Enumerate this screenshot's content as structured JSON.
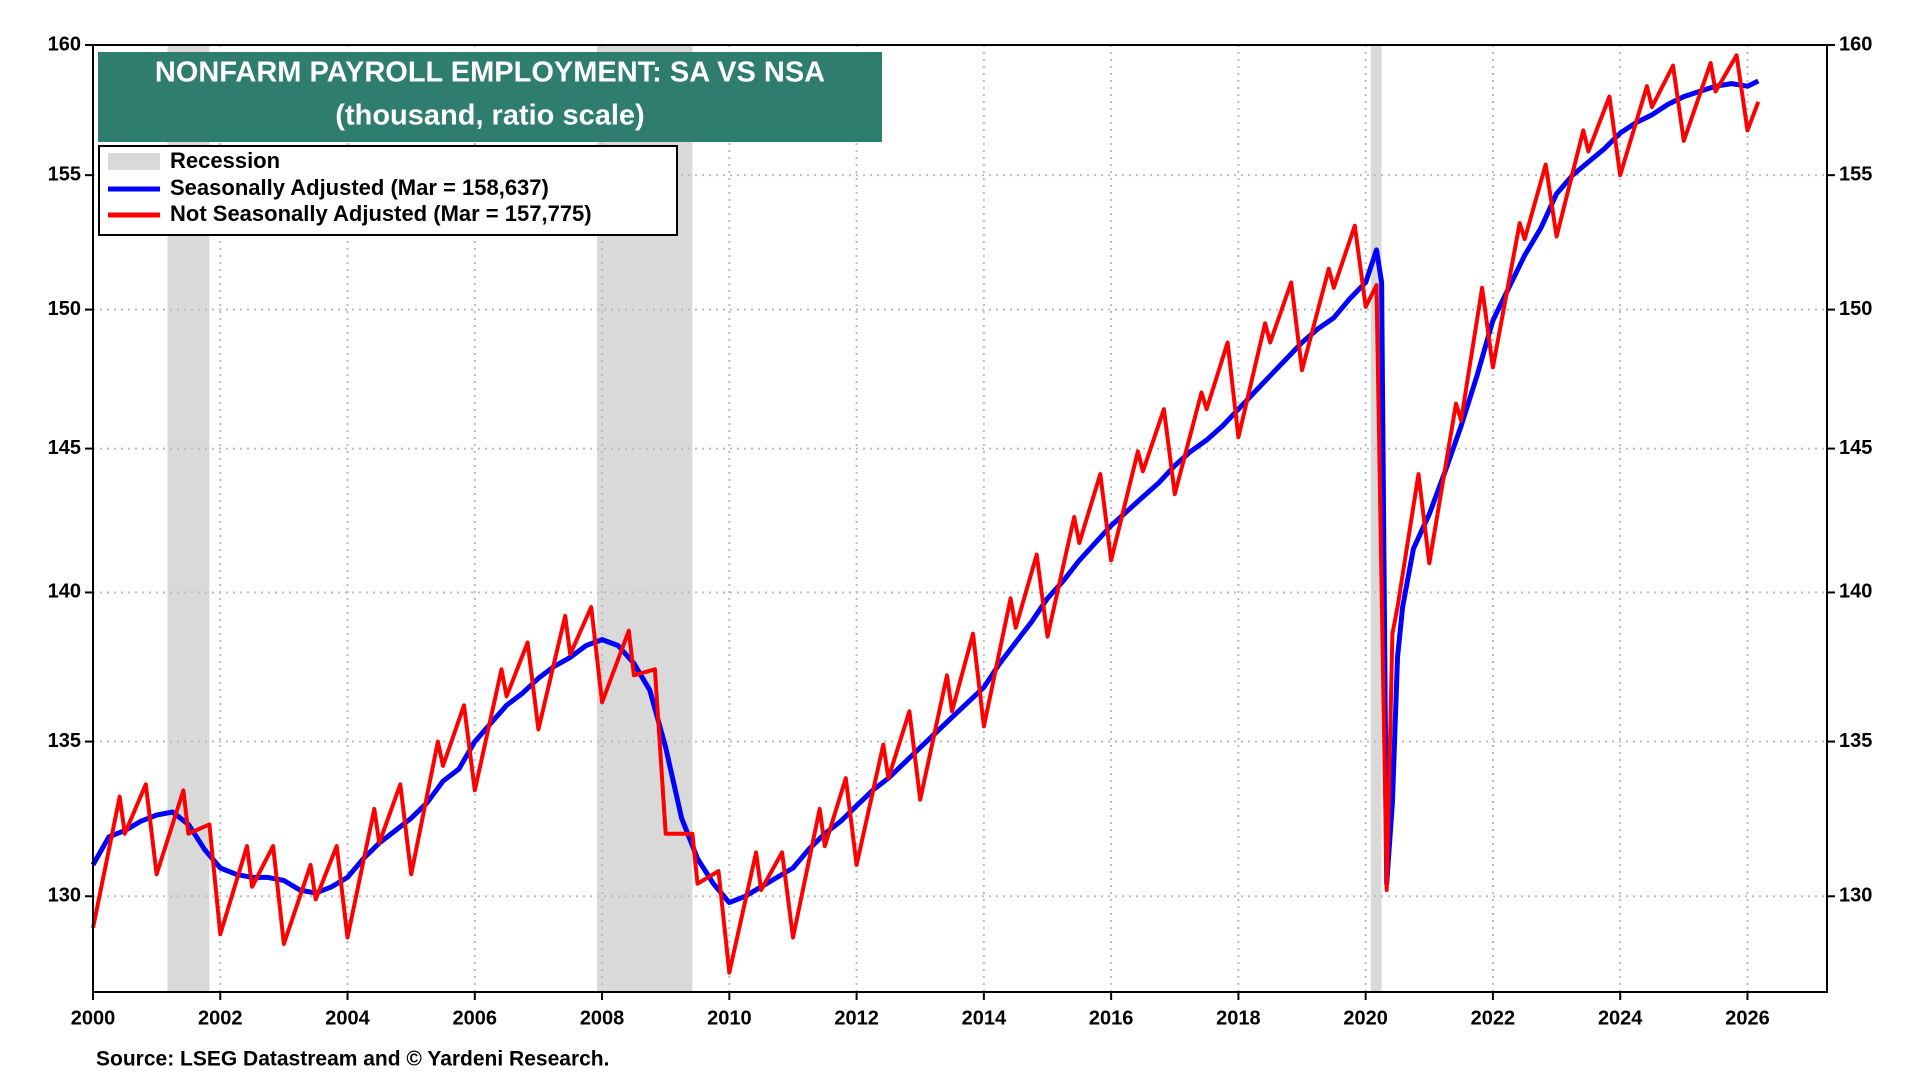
{
  "chart_data": {
    "type": "line",
    "title": "NONFARM PAYROLL EMPLOYMENT: SA VS NSA",
    "subtitle": "(thousand, ratio scale)",
    "source": "Source: LSEG Datastream and © Yardeni Research.",
    "recession_label": "Recession",
    "recessions": [
      [
        2001.17,
        2001.83
      ],
      [
        2007.92,
        2009.42
      ],
      [
        2020.08,
        2020.25
      ]
    ],
    "log_scale": true,
    "grid": true,
    "xlim": [
      2000,
      2027.25
    ],
    "ylim": [
      127,
      160
    ],
    "xticks": [
      2000,
      2002,
      2004,
      2006,
      2008,
      2010,
      2012,
      2014,
      2016,
      2018,
      2020,
      2022,
      2024,
      2026
    ],
    "yticks": [
      130,
      135,
      140,
      145,
      150,
      155,
      160
    ],
    "series": [
      {
        "name": "Seasonally Adjusted (Mar  = 158,637)",
        "color": "#0000ff",
        "x": [
          2000,
          2000.25,
          2000.5,
          2000.75,
          2001,
          2001.25,
          2001.5,
          2001.75,
          2002,
          2002.25,
          2002.5,
          2002.75,
          2003,
          2003.25,
          2003.5,
          2003.75,
          2004,
          2004.25,
          2004.5,
          2004.75,
          2005,
          2005.25,
          2005.5,
          2005.75,
          2006,
          2006.25,
          2006.5,
          2006.75,
          2007,
          2007.25,
          2007.5,
          2007.75,
          2008,
          2008.25,
          2008.5,
          2008.75,
          2009,
          2009.25,
          2009.5,
          2009.75,
          2010,
          2010.25,
          2010.5,
          2010.75,
          2011,
          2011.25,
          2011.5,
          2011.75,
          2012,
          2012.25,
          2012.5,
          2012.75,
          2013,
          2013.25,
          2013.5,
          2013.75,
          2014,
          2014.25,
          2014.5,
          2014.75,
          2015,
          2015.25,
          2015.5,
          2015.75,
          2016,
          2016.25,
          2016.5,
          2016.75,
          2017,
          2017.25,
          2017.5,
          2017.75,
          2018,
          2018.25,
          2018.5,
          2018.75,
          2019,
          2019.25,
          2019.5,
          2019.75,
          2020,
          2020.17,
          2020.25,
          2020.33,
          2020.42,
          2020.5,
          2020.58,
          2020.75,
          2021,
          2021.25,
          2021.5,
          2021.75,
          2022,
          2022.25,
          2022.5,
          2022.75,
          2023,
          2023.25,
          2023.5,
          2023.75,
          2024,
          2024.25,
          2024.5,
          2024.75,
          2025,
          2025.25,
          2025.5,
          2025.75,
          2026,
          2026.17
        ],
        "values": [
          131.0,
          131.9,
          132.1,
          132.4,
          132.6,
          132.7,
          132.3,
          131.5,
          130.9,
          130.7,
          130.6,
          130.6,
          130.5,
          130.2,
          130.1,
          130.3,
          130.6,
          131.2,
          131.7,
          132.1,
          132.5,
          133.0,
          133.7,
          134.1,
          135.0,
          135.6,
          136.2,
          136.6,
          137.1,
          137.5,
          137.8,
          138.2,
          138.4,
          138.2,
          137.6,
          136.7,
          134.8,
          132.5,
          131.2,
          130.4,
          129.8,
          130.0,
          130.3,
          130.6,
          130.9,
          131.5,
          132.0,
          132.4,
          132.9,
          133.4,
          133.8,
          134.3,
          134.8,
          135.3,
          135.8,
          136.3,
          136.8,
          137.6,
          138.3,
          139.0,
          139.8,
          140.4,
          141.1,
          141.7,
          142.3,
          142.8,
          143.3,
          143.8,
          144.4,
          144.9,
          145.3,
          145.8,
          146.4,
          147.0,
          147.6,
          148.2,
          148.8,
          149.3,
          149.7,
          150.4,
          151.0,
          152.2,
          151.0,
          130.4,
          133.0,
          137.8,
          139.5,
          141.5,
          142.7,
          144.2,
          145.8,
          147.6,
          149.6,
          150.8,
          152.0,
          153.0,
          154.3,
          155.0,
          155.5,
          156.0,
          156.6,
          157.0,
          157.3,
          157.7,
          158.0,
          158.2,
          158.4,
          158.5,
          158.4,
          158.6
        ]
      },
      {
        "name": "Not Seasonally Adjusted (Mar  = 157,775)",
        "color": "#ff0000",
        "x": [
          2000,
          2000.42,
          2000.5,
          2000.83,
          2001,
          2001.42,
          2001.5,
          2001.83,
          2002,
          2002.42,
          2002.5,
          2002.83,
          2003,
          2003.42,
          2003.5,
          2003.83,
          2004,
          2004.42,
          2004.5,
          2004.83,
          2005,
          2005.42,
          2005.5,
          2005.83,
          2006,
          2006.42,
          2006.5,
          2006.83,
          2007,
          2007.42,
          2007.5,
          2007.83,
          2008,
          2008.42,
          2008.5,
          2008.83,
          2009,
          2009.42,
          2009.5,
          2009.83,
          2010,
          2010.42,
          2010.5,
          2010.83,
          2011,
          2011.42,
          2011.5,
          2011.83,
          2012,
          2012.42,
          2012.5,
          2012.83,
          2013,
          2013.42,
          2013.5,
          2013.83,
          2014,
          2014.42,
          2014.5,
          2014.83,
          2015,
          2015.42,
          2015.5,
          2015.83,
          2016,
          2016.42,
          2016.5,
          2016.83,
          2017,
          2017.42,
          2017.5,
          2017.83,
          2018,
          2018.42,
          2018.5,
          2018.83,
          2019,
          2019.42,
          2019.5,
          2019.83,
          2020,
          2020.17,
          2020.33,
          2020.42,
          2020.5,
          2020.83,
          2021,
          2021.42,
          2021.5,
          2021.83,
          2022,
          2022.42,
          2022.5,
          2022.83,
          2023,
          2023.42,
          2023.5,
          2023.83,
          2024,
          2024.42,
          2024.5,
          2024.83,
          2025,
          2025.42,
          2025.5,
          2025.83,
          2026,
          2026.17
        ],
        "values": [
          129.0,
          133.2,
          132.0,
          133.6,
          130.7,
          133.4,
          132.0,
          132.3,
          128.8,
          131.6,
          130.3,
          131.6,
          128.5,
          131.0,
          129.9,
          131.6,
          128.7,
          132.8,
          131.7,
          133.6,
          130.7,
          135.0,
          134.2,
          136.2,
          133.4,
          137.4,
          136.5,
          138.3,
          135.4,
          139.2,
          137.9,
          139.5,
          136.3,
          138.7,
          137.2,
          137.4,
          132.0,
          132.0,
          130.4,
          130.8,
          127.6,
          131.4,
          130.2,
          131.4,
          128.7,
          132.8,
          131.6,
          133.8,
          131.0,
          134.9,
          133.8,
          136.0,
          133.1,
          137.2,
          136.0,
          138.6,
          135.5,
          139.8,
          138.8,
          141.3,
          138.5,
          142.6,
          141.7,
          144.1,
          141.1,
          144.9,
          144.2,
          146.4,
          143.4,
          147.0,
          146.4,
          148.8,
          145.4,
          149.5,
          148.8,
          151.0,
          147.8,
          151.5,
          150.8,
          153.1,
          150.1,
          150.9,
          130.2,
          138.6,
          139.5,
          144.1,
          141.0,
          146.6,
          146.0,
          150.8,
          147.9,
          153.2,
          152.6,
          155.4,
          152.7,
          156.7,
          155.9,
          158.0,
          155.0,
          158.4,
          157.6,
          159.2,
          156.3,
          159.3,
          158.2,
          159.6,
          156.7,
          157.8
        ]
      }
    ]
  }
}
